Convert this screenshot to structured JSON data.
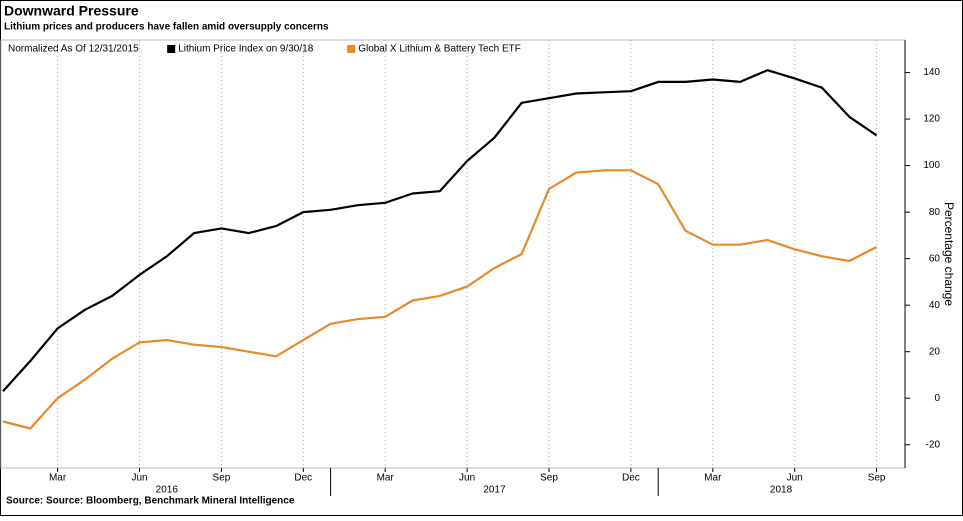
{
  "chart_data": {
    "type": "line",
    "title": "Downward Pressure",
    "subtitle": "Lithium prices and producers have fallen amid oversupply concerns",
    "legend_note": "Normalized As Of 12/31/2015",
    "y_label": "Percentage change",
    "source": "Source: Source: Bloomberg, Benchmark Mineral Intelligence",
    "x": [
      "2016-01",
      "2016-02",
      "2016-03",
      "2016-04",
      "2016-05",
      "2016-06",
      "2016-07",
      "2016-08",
      "2016-09",
      "2016-10",
      "2016-11",
      "2016-12",
      "2017-01",
      "2017-02",
      "2017-03",
      "2017-04",
      "2017-05",
      "2017-06",
      "2017-07",
      "2017-08",
      "2017-09",
      "2017-10",
      "2017-11",
      "2017-12",
      "2018-01",
      "2018-02",
      "2018-03",
      "2018-04",
      "2018-05",
      "2018-06",
      "2018-07",
      "2018-08",
      "2018-09"
    ],
    "xticks": [
      {
        "value": "2016-03",
        "label": "Mar"
      },
      {
        "value": "2016-06",
        "label": "Jun"
      },
      {
        "value": "2016-09",
        "label": "Sep"
      },
      {
        "value": "2016-12",
        "label": "Dec"
      },
      {
        "value": "2017-03",
        "label": "Mar"
      },
      {
        "value": "2017-06",
        "label": "Jun"
      },
      {
        "value": "2017-09",
        "label": "Sep"
      },
      {
        "value": "2017-12",
        "label": "Dec"
      },
      {
        "value": "2018-03",
        "label": "Mar"
      },
      {
        "value": "2018-06",
        "label": "Jun"
      },
      {
        "value": "2018-09",
        "label": "Sep"
      }
    ],
    "years": [
      "2016",
      "2017",
      "2018"
    ],
    "series": [
      {
        "name": "Lithium Price Index on 9/30/18",
        "color": "#000000",
        "values": [
          3,
          16,
          30,
          38,
          44,
          53,
          61,
          71,
          73,
          71,
          74,
          80,
          81,
          83,
          84,
          88,
          89,
          102,
          112,
          127,
          129,
          131,
          131.5,
          132,
          136,
          136,
          137,
          136,
          141,
          137.5,
          133.5,
          121,
          113
        ]
      },
      {
        "name": "Global X Lithium & Battery Tech ETF",
        "color": "#e8892a",
        "values": [
          -10,
          -13,
          0,
          8,
          17,
          24,
          25,
          23,
          22,
          20,
          18,
          25,
          32,
          34,
          35,
          42,
          44,
          48,
          56,
          62,
          90,
          97,
          98,
          98,
          92,
          72,
          66,
          66,
          68,
          64,
          61,
          59,
          65
        ]
      }
    ],
    "ylim": [
      -30,
      154
    ],
    "yticks": [
      -20,
      0,
      20,
      40,
      60,
      80,
      100,
      120,
      140
    ],
    "grid": "vertical"
  }
}
